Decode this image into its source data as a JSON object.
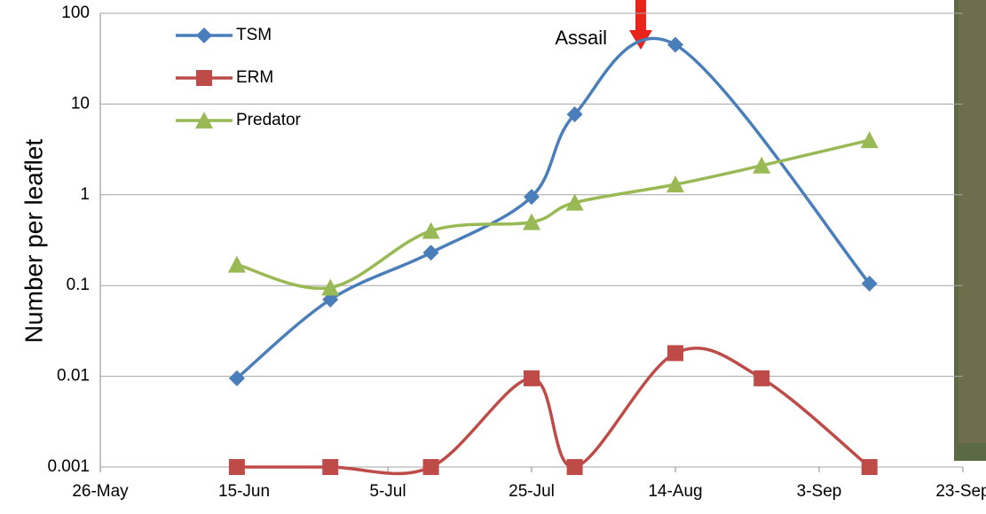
{
  "chart_data": {
    "type": "line",
    "y_label": "Number per leaflet",
    "annotation": "Assail",
    "x": [
      165,
      178,
      192,
      206,
      212,
      226,
      238,
      253
    ],
    "xlim": [
      146,
      266
    ],
    "xticks": [
      {
        "value": 146,
        "label": "26-May"
      },
      {
        "value": 166,
        "label": "15-Jun"
      },
      {
        "value": 186,
        "label": "5-Jul"
      },
      {
        "value": 206,
        "label": "25-Jul"
      },
      {
        "value": 226,
        "label": "14-Aug"
      },
      {
        "value": 246,
        "label": "3-Sep"
      },
      {
        "value": 266,
        "label": "23-Sep"
      }
    ],
    "ylim": [
      0.001,
      100
    ],
    "yticks": [
      0.001,
      0.01,
      0.1,
      1,
      10,
      100
    ],
    "log_y": true,
    "grid": true,
    "legend": "top-left",
    "series": [
      {
        "name": "TSM",
        "color": "#4a7ebb",
        "marker": "diamond",
        "values": [
          0.0095,
          0.07,
          0.23,
          0.95,
          7.7,
          45,
          null,
          0.105
        ]
      },
      {
        "name": "ERM",
        "color": "#be4b48",
        "marker": "square",
        "values": [
          0.001,
          0.001,
          0.001,
          0.0095,
          0.001,
          0.018,
          0.0095,
          0.001
        ]
      },
      {
        "name": "Predator",
        "color": "#98b954",
        "marker": "triangle",
        "values": [
          0.17,
          0.095,
          0.4,
          0.5,
          0.82,
          1.3,
          2.1,
          4
        ]
      }
    ]
  }
}
